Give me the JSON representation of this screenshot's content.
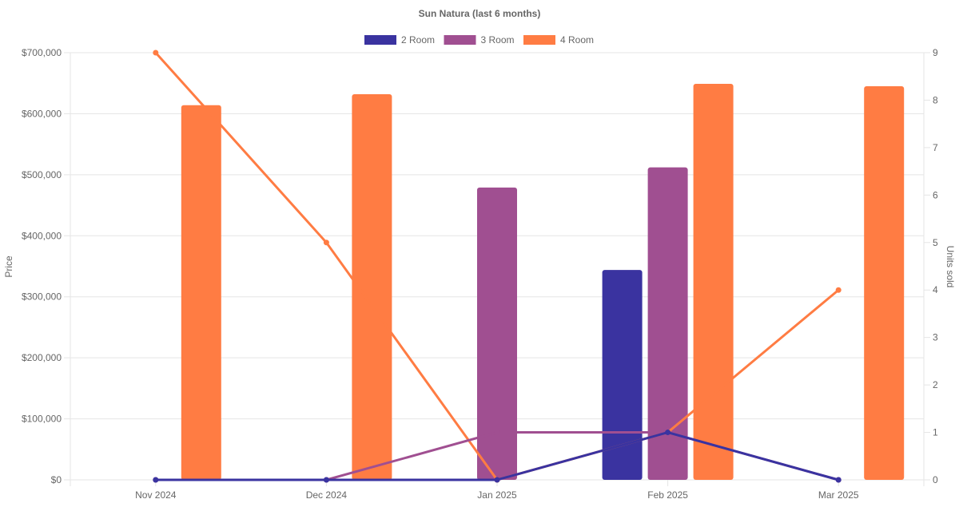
{
  "chart_data": {
    "type": "bar",
    "title": "Sun Natura (last 6 months)",
    "categories": [
      "Nov 2024",
      "Dec 2024",
      "Jan 2025",
      "Feb 2025",
      "Mar 2025"
    ],
    "ylabel": "Price",
    "y2label": "Units sold",
    "ylim": [
      0,
      700000
    ],
    "y2lim": [
      0,
      9
    ],
    "yticks": [
      "$0",
      "$100,000",
      "$200,000",
      "$300,000",
      "$400,000",
      "$500,000",
      "$600,000",
      "$700,000"
    ],
    "y2ticks": [
      "0",
      "1",
      "2",
      "3",
      "4",
      "5",
      "6",
      "7",
      "8",
      "9"
    ],
    "grid": true,
    "legend_position": "top",
    "series": [
      {
        "name": "2 Room",
        "color": "#3a33a0",
        "price": [
          null,
          null,
          null,
          344000,
          null
        ],
        "units": [
          0,
          0,
          0,
          1,
          0
        ]
      },
      {
        "name": "3 Room",
        "color": "#a04f91",
        "price": [
          null,
          null,
          479000,
          512000,
          null
        ],
        "units": [
          0,
          0,
          1,
          1,
          0
        ]
      },
      {
        "name": "4 Room",
        "color": "#ff7c43",
        "price": [
          614000,
          632000,
          null,
          649000,
          645000
        ],
        "units": [
          9,
          5,
          0,
          1,
          4
        ]
      }
    ]
  }
}
